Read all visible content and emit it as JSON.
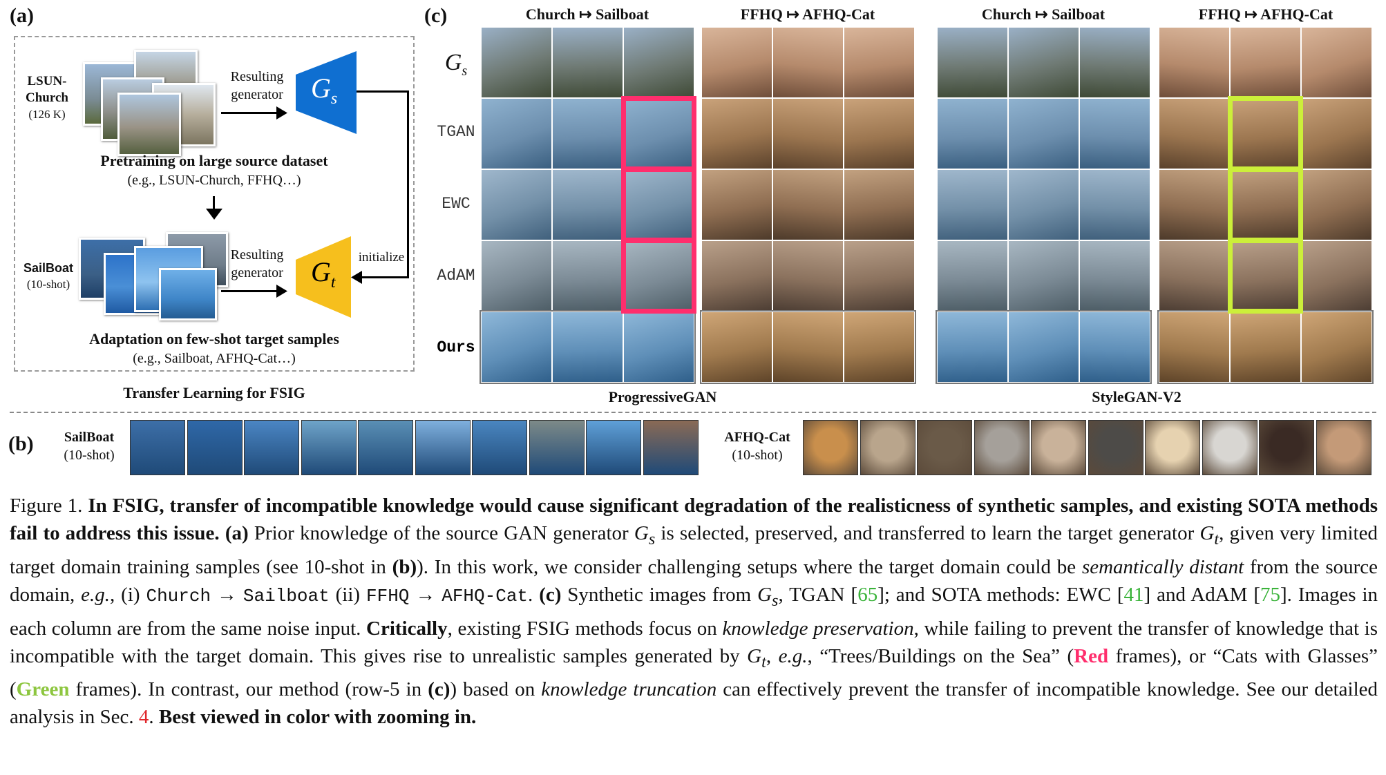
{
  "panel_a": {
    "letter": "(a)",
    "source_name": "LSUN-Church",
    "source_name_l1": "LSUN-",
    "source_name_l2": "Church",
    "source_count": "(126 K)",
    "resulting_generator": "Resulting generator",
    "gs": "G",
    "gs_sub": "s",
    "gt": "G",
    "gt_sub": "t",
    "pretrain_title": "Pretraining on large source dataset",
    "pretrain_sub": "(e.g., LSUN-Church, FFHQ…)",
    "target_name": "SailBoat",
    "target_count": "(10-shot)",
    "initialize": "initialize",
    "adapt_title": "Adaptation on few-shot target samples",
    "adapt_sub": "(e.g., Sailboat, AFHQ-Cat…)",
    "footer": "Transfer Learning for FSIG",
    "colors": {
      "gs_fill": "#0f6fd1",
      "gt_fill": "#f6bf1d"
    }
  },
  "panel_c": {
    "letter": "(c)",
    "col_titles": [
      "Church ↦ Sailboat",
      "FFHQ  ↦ AFHQ-Cat",
      "Church ↦ Sailboat",
      "FFHQ  ↦ AFHQ-Cat"
    ],
    "row_labels": [
      "G",
      "TGAN",
      "EWC",
      "AdAM",
      "Ours"
    ],
    "row_label_gs_sub": "s",
    "model_labels": [
      "ProgressiveGAN",
      "StyleGAN-V2"
    ],
    "colors": {
      "red_frame": "#ff2e6d",
      "green_frame": "#ccef3a"
    }
  },
  "panel_b": {
    "letter": "(b)",
    "left_name": "SailBoat",
    "left_count": "(10-shot)",
    "right_name": "AFHQ-Cat",
    "right_count": "(10-shot)"
  },
  "caption": {
    "fig": "Figure 1.",
    "bold1": "In FSIG, transfer of incompatible knowledge would cause significant degradation of the realisticness of synthetic samples, and existing SOTA methods fail to address this issue.",
    "a_ref": "(a)",
    "t1": "Prior knowledge of the source GAN generator",
    "t2": "is selected, preserved, and transferred to learn the target generator",
    "t3": ", given very limited target domain training samples (see 10-shot in",
    "b_ref": "(b)",
    "t4": "). In this work, we consider challenging setups where the target domain could be",
    "ital1": "semantically distant",
    "t5": "from the source domain,",
    "eg": "e.g.",
    "t6": ", (i)",
    "church": "Church",
    "arrow": "→",
    "sailboat": "Sailboat",
    "t7": "(ii)",
    "ffhq": "FFHQ",
    "afhq": "AFHQ-Cat",
    "c_ref": "(c)",
    "t8": "Synthetic images from",
    "t9": ", TGAN [",
    "cite65": "65",
    "t10": "]; and SOTA methods: EWC [",
    "cite41": "41",
    "t11": "] and AdAM [",
    "cite75": "75",
    "t12": "]. Images in each column are from the same noise input.",
    "critically": "Critically",
    "t13": ", existing FSIG methods focus on",
    "ital2": "knowledge preservation",
    "t14": ", while failing to prevent the transfer of knowledge that is incompatible with the target domain. This gives rise to unrealistic samples generated by",
    "t15": ",",
    "t16": ", “Trees/Buildings on the Sea” (",
    "red": "Red",
    "t17": "frames), or “Cats with Glasses” (",
    "green": "Green",
    "t18": "frames). In contrast, our method (row-5 in",
    "t19": ") based on",
    "ital3": "knowledge truncation",
    "t20": "can effectively prevent the transfer of incompatible knowledge. See our detailed analysis in Sec.",
    "sec4": "4",
    "t21": ".",
    "best": "Best viewed in color with zooming in."
  }
}
